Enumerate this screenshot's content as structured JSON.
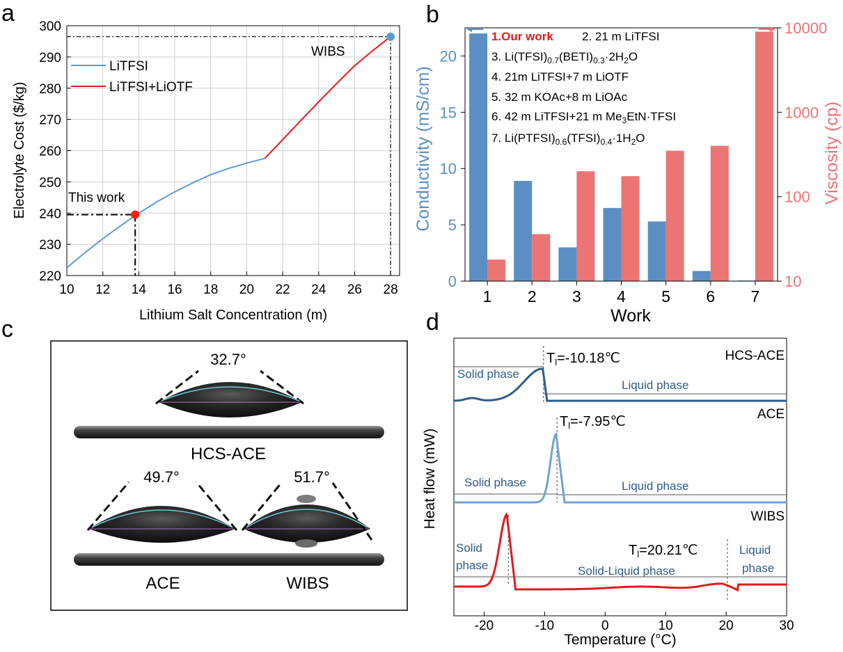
{
  "panel_letters": [
    "a",
    "b",
    "c",
    "d"
  ],
  "chart_data": [
    {
      "id": "a",
      "type": "line",
      "xlabel": "Lithium Salt Concentration (m)",
      "ylabel": "Electrolyte Cost ($/kg)",
      "xlim": [
        10,
        28.5
      ],
      "ylim": [
        220,
        300
      ],
      "xticks": [
        10,
        12,
        14,
        16,
        18,
        20,
        22,
        24,
        26,
        28
      ],
      "yticks": [
        220,
        230,
        240,
        250,
        260,
        270,
        280,
        290,
        300
      ],
      "grid": true,
      "legend_position": "top-left",
      "series": [
        {
          "name": "LiTFSI",
          "color": "#5b9bd5",
          "x": [
            10,
            11,
            12,
            13,
            13.8,
            15,
            16,
            17,
            18,
            19,
            20,
            21
          ],
          "y": [
            222.5,
            227.3,
            231.8,
            236,
            239.2,
            243.6,
            246.8,
            249.7,
            252.3,
            254.3,
            256,
            257.5
          ]
        },
        {
          "name": "LiTFSI+LiOTF",
          "color": "#e31a1c",
          "x": [
            21,
            22,
            23,
            24,
            25,
            26,
            27,
            28
          ],
          "y": [
            257.5,
            263.5,
            269.6,
            275.6,
            281.5,
            287.2,
            292,
            296.5
          ]
        }
      ],
      "points": [
        {
          "label": "This work",
          "x": 13.8,
          "y": 239.5,
          "color": "#ff1a1a"
        },
        {
          "label": "WIBS",
          "x": 28,
          "y": 296.5,
          "color": "#5b9bd5"
        }
      ]
    },
    {
      "id": "b",
      "type": "bar",
      "xlabel": "Work",
      "ylabel_left": "Conductivity (mS/cm)",
      "ylabel_right": "Viscosity (cp)",
      "categories": [
        "1",
        "2",
        "3",
        "4",
        "5",
        "6",
        "7"
      ],
      "ylim_left": [
        0,
        22.5
      ],
      "yticks_left": [
        0,
        5,
        10,
        15,
        20
      ],
      "ylim_right": [
        10,
        10000
      ],
      "yticks_right": [
        10,
        100,
        1000,
        10000
      ],
      "right_axis_scale": "log",
      "series": [
        {
          "name": "Conductivity",
          "axis": "left",
          "color": "#5b8fc4",
          "values": [
            22,
            8.9,
            3,
            6.5,
            5.3,
            0.9,
            0.05
          ]
        },
        {
          "name": "Viscosity",
          "axis": "right",
          "color": "#eb7474",
          "values": [
            18,
            36,
            200,
            175,
            350,
            400,
            9000
          ]
        }
      ],
      "legend": [
        {
          "text": "1.Our work",
          "highlight": true
        },
        {
          "text": "2. 21 m LiTFSI"
        },
        {
          "text": "3. Li(TFSI)0.7(BETI)0.3·2H2O"
        },
        {
          "text": "4. 21m LiTFSI+7 m LiOTF"
        },
        {
          "text": "5. 32 m KOAc+8 m LiOAc"
        },
        {
          "text": "6. 42 m LiTFSI+21 m Me3EtN·TFSI"
        },
        {
          "text": "7. Li(PTFSI)0.6(TFSI)0.4·1H2O"
        }
      ]
    },
    {
      "id": "d",
      "type": "line",
      "xlabel": "Temperature (°C)",
      "ylabel": "Heat flow (mW)",
      "xlim": [
        -25,
        30
      ],
      "xticks": [
        -20,
        -10,
        0,
        10,
        20,
        30
      ],
      "series": [
        {
          "name": "HCS-ACE",
          "color": "#2e5b8a",
          "transition_label": "Tl=-10.18℃",
          "Tl": -10.18
        },
        {
          "name": "ACE",
          "color": "#6fa3d2",
          "transition_label": "Tl=-7.95℃",
          "Tl": -7.95
        },
        {
          "name": "WIBS",
          "color": "#e01b1b",
          "transition_label": "Tl=20.21℃",
          "Tl": 20.21
        }
      ],
      "annotations": {
        "hcs_solid": "Solid phase",
        "hcs_liquid": "Liquid phase",
        "ace_solid": "Solid phase",
        "ace_liquid": "Liquid phase",
        "wibs_solid": [
          "Solid",
          "phase"
        ],
        "wibs_mixed": "Solid-Liquid phase",
        "wibs_liquid": [
          "Liquid",
          "phase"
        ]
      }
    }
  ],
  "photo_c": {
    "angles": [
      "32.7°",
      "49.7°",
      "51.7°"
    ],
    "labels": [
      "HCS-ACE",
      "ACE",
      "WIBS"
    ]
  }
}
